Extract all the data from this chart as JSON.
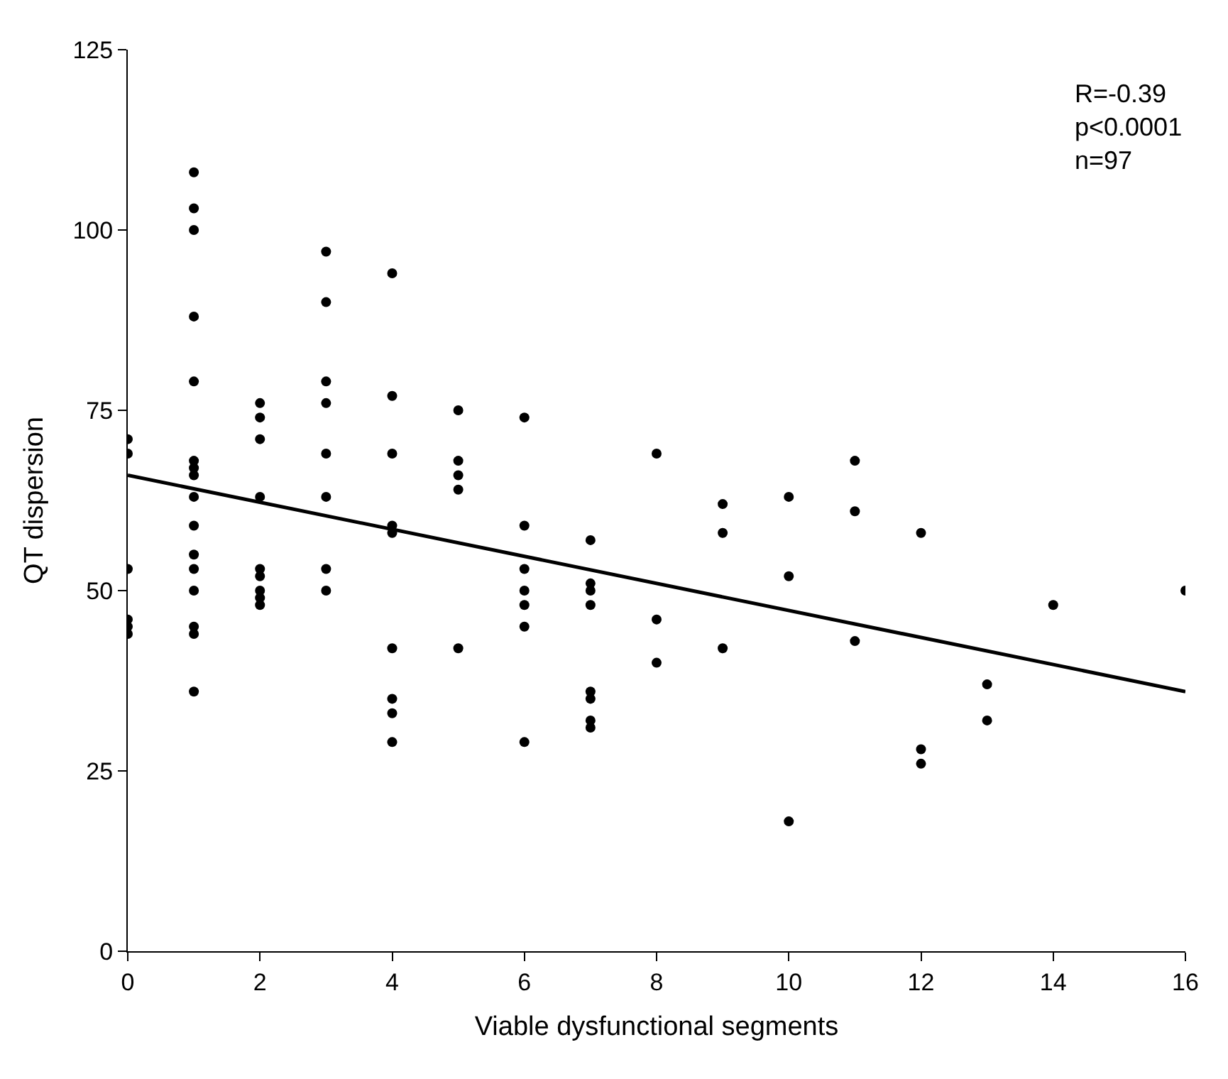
{
  "chart_data": {
    "type": "scatter",
    "xlabel": "Viable dysfunctional segments",
    "ylabel": "QT dispersion",
    "xlim": [
      0,
      16
    ],
    "xticks": [
      0,
      2,
      4,
      6,
      8,
      10,
      12,
      14,
      16
    ],
    "ylim": [
      0,
      125
    ],
    "yticks": [
      0,
      25,
      50,
      75,
      100,
      125
    ],
    "annotations": [
      "R=-0.39\np<0.0001\nn=97"
    ],
    "series": [
      {
        "color": "#000000",
        "marker": "circle",
        "x": [
          0,
          0,
          0,
          0,
          0,
          0,
          1,
          1,
          1,
          1,
          1,
          1,
          1,
          1,
          1,
          1,
          1,
          1,
          1,
          1,
          1,
          1,
          2,
          2,
          2,
          2,
          2,
          2,
          2,
          2,
          2,
          3,
          3,
          3,
          3,
          3,
          3,
          3,
          3,
          4,
          4,
          4,
          4,
          4,
          4,
          4,
          4,
          4,
          5,
          5,
          5,
          5,
          5,
          6,
          6,
          6,
          6,
          6,
          6,
          6,
          7,
          7,
          7,
          7,
          7,
          7,
          7,
          7,
          8,
          8,
          8,
          9,
          9,
          9,
          10,
          10,
          10,
          11,
          11,
          11,
          12,
          12,
          12,
          13,
          13,
          14,
          16
        ],
        "values": [
          71,
          69,
          53,
          46,
          45,
          44,
          108,
          103,
          100,
          88,
          79,
          68,
          67,
          66,
          63,
          59,
          55,
          53,
          50,
          45,
          44,
          36,
          76,
          74,
          71,
          63,
          53,
          52,
          50,
          49,
          48,
          97,
          90,
          79,
          76,
          69,
          63,
          53,
          50,
          94,
          77,
          69,
          59,
          58,
          42,
          35,
          33,
          29,
          75,
          68,
          66,
          64,
          42,
          74,
          59,
          53,
          50,
          48,
          45,
          29,
          57,
          51,
          50,
          48,
          36,
          35,
          32,
          31,
          69,
          46,
          40,
          62,
          58,
          42,
          63,
          52,
          18,
          68,
          61,
          43,
          58,
          28,
          26,
          37,
          32,
          48,
          50
        ]
      },
      {
        "type": "line",
        "color": "#000000",
        "line_style": "solid",
        "x": [
          0,
          16
        ],
        "values": [
          66,
          36
        ]
      }
    ]
  }
}
